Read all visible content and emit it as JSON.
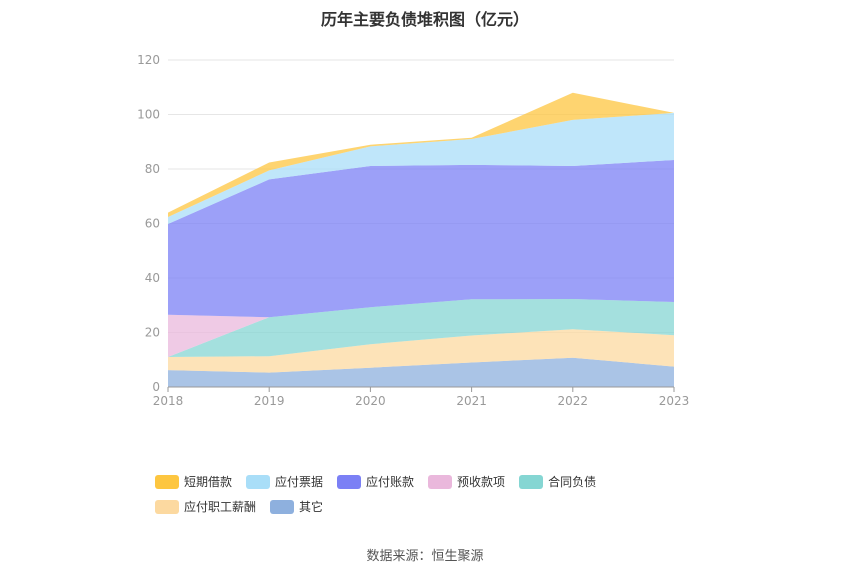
{
  "chart_data": {
    "type": "area",
    "stacked": true,
    "title": "历年主要负债堆积图（亿元）",
    "source_label": "数据来源：恒生聚源",
    "categories": [
      "2018",
      "2019",
      "2020",
      "2021",
      "2022",
      "2023"
    ],
    "ylim": [
      0,
      120
    ],
    "yticks": [
      0,
      20,
      40,
      60,
      80,
      100,
      120
    ],
    "grid": true,
    "legend_position": "bottom",
    "series": [
      {
        "name": "其它",
        "color": "#8eb0de",
        "values": [
          6.2,
          5.3,
          7.1,
          9.0,
          10.7,
          7.5
        ]
      },
      {
        "name": "应付职工薪酬",
        "color": "#fcd9a0",
        "values": [
          4.8,
          6.0,
          8.6,
          9.9,
          10.5,
          11.5
        ]
      },
      {
        "name": "合同负债",
        "color": "#85d6d3",
        "values": [
          0.0,
          14.3,
          13.6,
          13.3,
          11.1,
          12.2
        ]
      },
      {
        "name": "预收款项",
        "color": "#eab8dc",
        "values": [
          15.5,
          0.0,
          0.0,
          0.0,
          0.0,
          0.0
        ]
      },
      {
        "name": "应付账款",
        "color": "#7b80f5",
        "values": [
          33.3,
          50.6,
          51.8,
          49.3,
          48.8,
          52.1
        ]
      },
      {
        "name": "应付票据",
        "color": "#a9def8",
        "values": [
          2.6,
          3.3,
          7.2,
          9.5,
          16.9,
          17.3
        ]
      },
      {
        "name": "短期借款",
        "color": "#fdc640",
        "values": [
          1.6,
          2.9,
          0.6,
          0.5,
          10.0,
          0.0
        ]
      }
    ]
  }
}
